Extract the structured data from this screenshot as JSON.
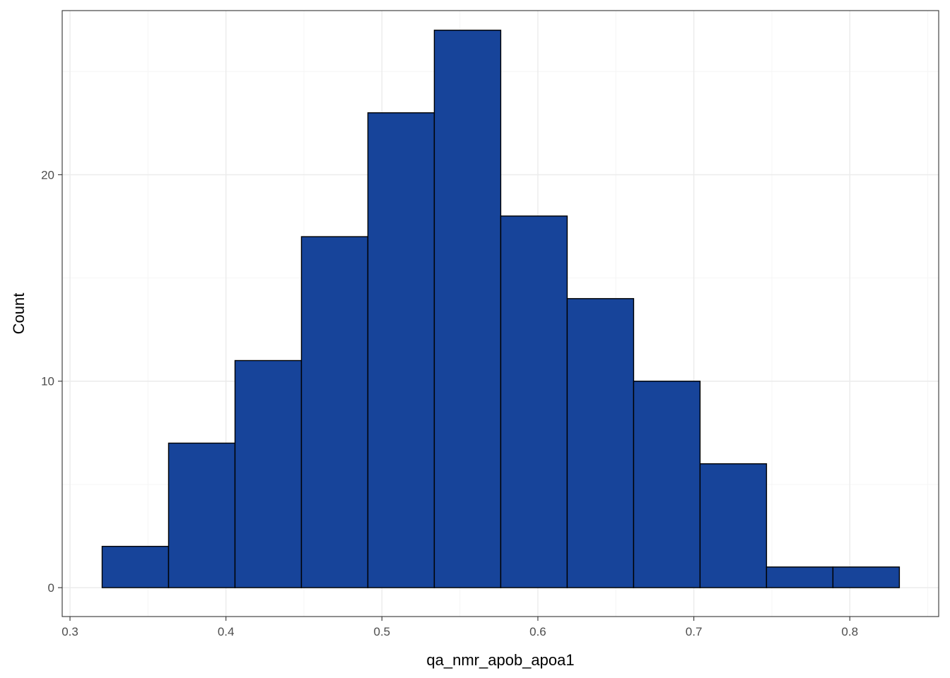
{
  "chart_data": {
    "type": "bar",
    "subtype": "histogram",
    "title": "",
    "xlabel": "qa_nmr_apob_apoa1",
    "ylabel": "Count",
    "xlim": [
      0.295,
      0.857
    ],
    "ylim": [
      -1.4,
      27.95
    ],
    "x_ticks": [
      0.3,
      0.4,
      0.5,
      0.6,
      0.7,
      0.8
    ],
    "x_tick_labels": [
      "0.3",
      "0.4",
      "0.5",
      "0.6",
      "0.7",
      "0.8"
    ],
    "y_ticks": [
      0,
      10,
      20
    ],
    "y_tick_labels": [
      "0",
      "10",
      "20"
    ],
    "grid": true,
    "legend": "none",
    "bins": [
      {
        "x0": 0.3206,
        "x1": 0.3632,
        "count": 2
      },
      {
        "x0": 0.3632,
        "x1": 0.4058,
        "count": 7
      },
      {
        "x0": 0.4058,
        "x1": 0.4484,
        "count": 11
      },
      {
        "x0": 0.4484,
        "x1": 0.491,
        "count": 17
      },
      {
        "x0": 0.491,
        "x1": 0.5336,
        "count": 23
      },
      {
        "x0": 0.5336,
        "x1": 0.5762,
        "count": 27
      },
      {
        "x0": 0.5762,
        "x1": 0.6188,
        "count": 18
      },
      {
        "x0": 0.6188,
        "x1": 0.6614,
        "count": 14
      },
      {
        "x0": 0.6614,
        "x1": 0.704,
        "count": 10
      },
      {
        "x0": 0.704,
        "x1": 0.7466,
        "count": 6
      },
      {
        "x0": 0.7466,
        "x1": 0.7892,
        "count": 1
      },
      {
        "x0": 0.7892,
        "x1": 0.8318,
        "count": 1
      }
    ],
    "colors": {
      "bar_fill": "#17449a",
      "bar_stroke": "#000000",
      "panel_border": "#333333",
      "grid_major": "#ebebeb",
      "grid_minor": "#f5f5f5"
    }
  }
}
